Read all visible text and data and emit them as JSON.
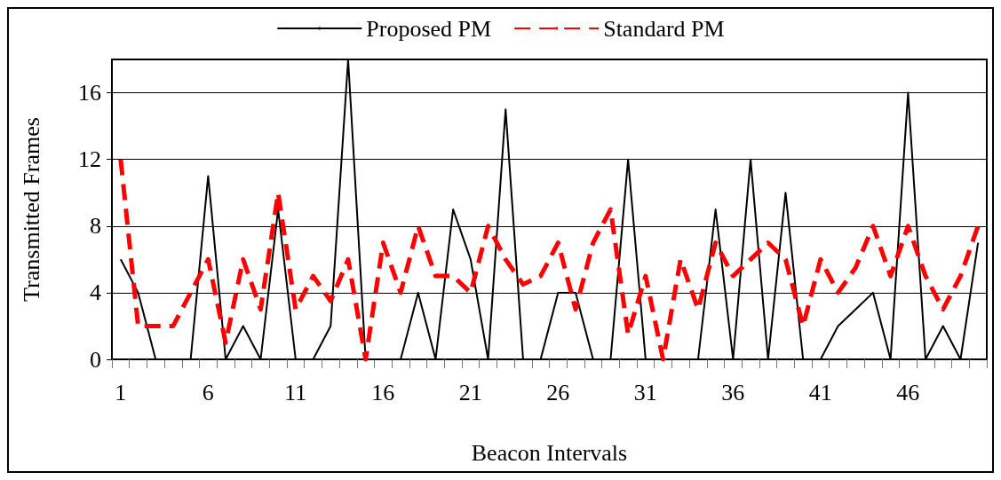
{
  "chart_data": {
    "type": "line",
    "xlabel": "Beacon Intervals",
    "ylabel": "Transmitted Frames",
    "categories": [
      "1",
      null,
      null,
      null,
      null,
      "6",
      null,
      null,
      null,
      null,
      "11",
      null,
      null,
      null,
      null,
      "16",
      null,
      null,
      null,
      null,
      "21",
      null,
      null,
      null,
      null,
      "26",
      null,
      null,
      null,
      null,
      "31",
      null,
      null,
      null,
      null,
      "36",
      null,
      null,
      null,
      null,
      "41",
      null,
      null,
      null,
      null,
      "46",
      null,
      null,
      null,
      null
    ],
    "series": [
      {
        "name": "Proposed PM",
        "color": "#000000",
        "line_style": "solid",
        "values": [
          6,
          4,
          0,
          0,
          0,
          11,
          0,
          2,
          0,
          9,
          0,
          0,
          2,
          18,
          0,
          0,
          0,
          4,
          0,
          9,
          6,
          0,
          15,
          0,
          0,
          4,
          4,
          0,
          0,
          12,
          0,
          0,
          0,
          0,
          9,
          0,
          12,
          0,
          10,
          0,
          0,
          2,
          3,
          4,
          0,
          16,
          0,
          2,
          0,
          7
        ]
      },
      {
        "name": "Standard PM",
        "color": "#ff0000",
        "line_style": "dashed",
        "values": [
          12,
          2,
          2,
          2,
          4,
          6,
          1,
          6,
          3,
          10,
          3,
          5,
          3.5,
          6,
          0,
          7,
          4,
          8,
          5,
          5,
          4,
          8,
          6,
          4.5,
          5,
          7,
          3,
          7,
          9,
          1.5,
          5,
          0,
          6,
          3,
          7,
          5,
          6,
          7,
          6,
          2,
          6,
          4,
          5.5,
          8,
          5,
          8,
          5,
          3,
          5,
          8
        ]
      }
    ],
    "ylim": [
      0,
      18
    ],
    "yticks": [
      0,
      4,
      8,
      12,
      16
    ],
    "grid": "y",
    "legend": "top",
    "marker": "none"
  }
}
